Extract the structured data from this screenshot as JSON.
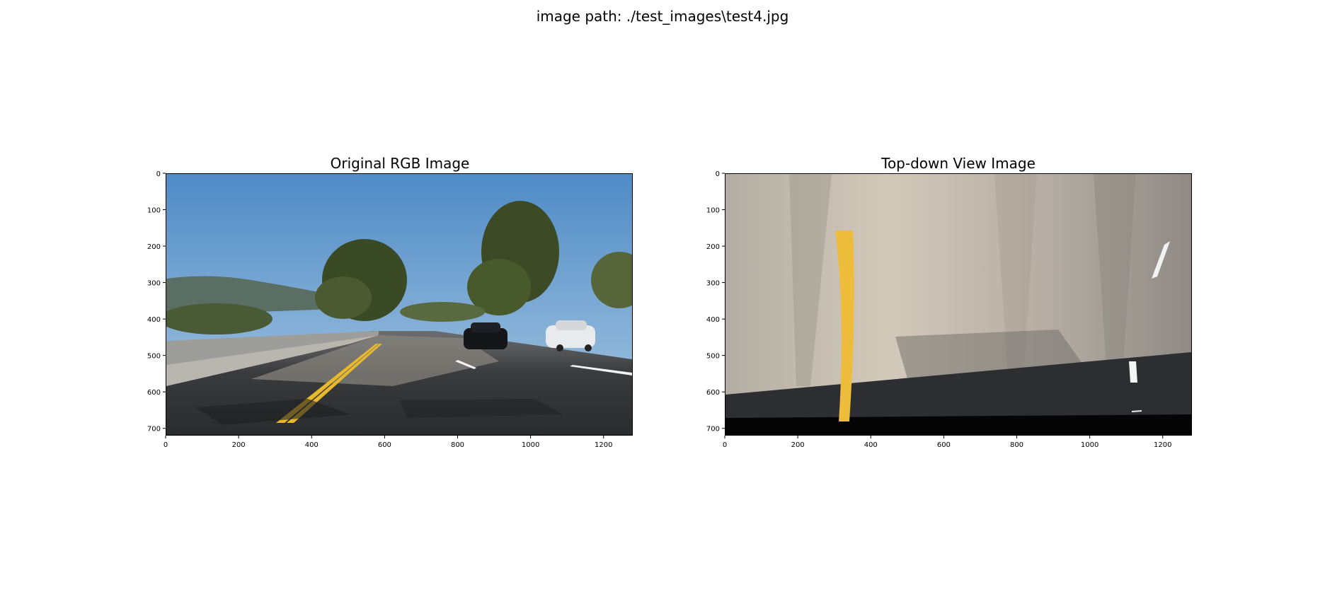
{
  "figure": {
    "suptitle": "image path: ./test_images\\test4.jpg"
  },
  "panels": [
    {
      "title": "Original RGB Image",
      "image_icon": "road-photo-icon",
      "x_ticks": [
        "0",
        "200",
        "400",
        "600",
        "800",
        "1000",
        "1200"
      ],
      "y_ticks": [
        "0",
        "100",
        "200",
        "300",
        "400",
        "500",
        "600",
        "700"
      ],
      "x_tick_values": [
        0,
        200,
        400,
        600,
        800,
        1000,
        1200
      ],
      "y_tick_values": [
        0,
        100,
        200,
        300,
        400,
        500,
        600,
        700
      ],
      "xlim": [
        0,
        1280
      ],
      "ylim": [
        720,
        0
      ]
    },
    {
      "title": "Top-down View Image",
      "image_icon": "warped-road-icon",
      "x_ticks": [
        "0",
        "200",
        "400",
        "600",
        "800",
        "1000",
        "1200"
      ],
      "y_ticks": [
        "0",
        "100",
        "200",
        "300",
        "400",
        "500",
        "600",
        "700"
      ],
      "x_tick_values": [
        0,
        200,
        400,
        600,
        800,
        1000,
        1200
      ],
      "y_tick_values": [
        0,
        100,
        200,
        300,
        400,
        500,
        600,
        700
      ],
      "xlim": [
        0,
        1280
      ],
      "ylim": [
        720,
        0
      ]
    }
  ],
  "colors": {
    "sky": "#5b93c8",
    "road": "#2f3032",
    "lane_yellow": "#f0c23a",
    "warp_bg": "#c9c0b2"
  }
}
